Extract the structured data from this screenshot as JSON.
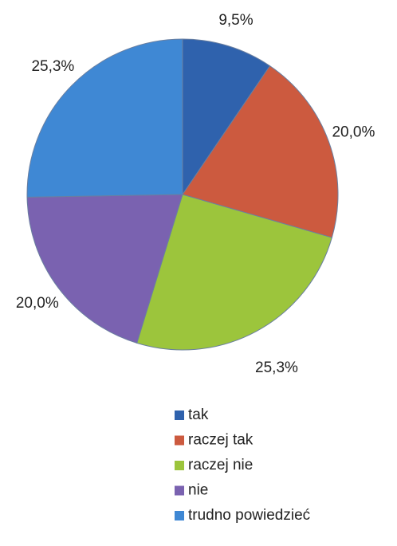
{
  "chart_data": {
    "type": "pie",
    "categories": [
      "tak",
      "raczej tak",
      "raczej nie",
      "nie",
      "trudno powiedzieć"
    ],
    "values": [
      9.5,
      20.0,
      25.3,
      20.0,
      25.3
    ],
    "value_labels": [
      "9,5%",
      "20,0%",
      "25,3%",
      "20,0%",
      "25,3%"
    ],
    "colors": [
      "#2f62ad",
      "#cc5a3f",
      "#9cc53c",
      "#7a62b0",
      "#3f88d4"
    ],
    "legend": "bottom"
  }
}
